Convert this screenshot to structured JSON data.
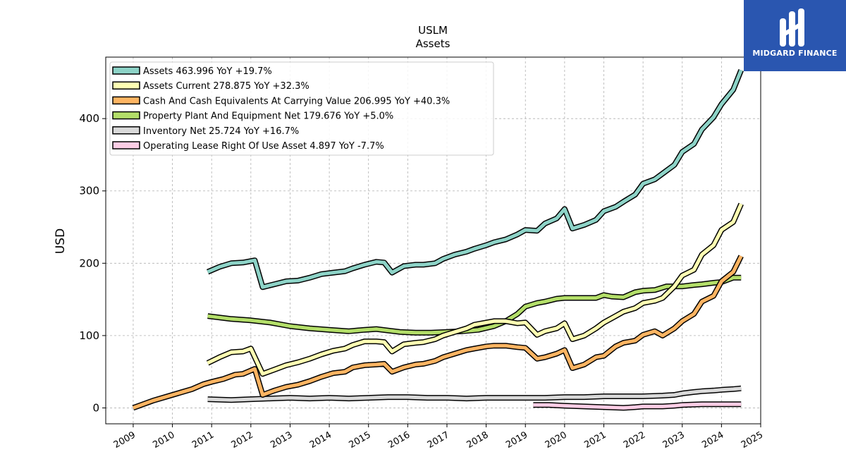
{
  "brand": {
    "name": "MIDGARD FINANCE",
    "color": "#2a56b0"
  },
  "chart_data": {
    "type": "line",
    "title": "USLM",
    "subtitle": "Assets",
    "ylabel": "USD",
    "xlabel": "",
    "xlim": [
      2008.3,
      2025.0
    ],
    "ylim": [
      -22,
      485
    ],
    "yticks": [
      0,
      100,
      200,
      300,
      400
    ],
    "xticks": [
      "2009",
      "2010",
      "2011",
      "2012",
      "2013",
      "2014",
      "2015",
      "2016",
      "2017",
      "2018",
      "2019",
      "2020",
      "2021",
      "2022",
      "2023",
      "2024",
      "2025"
    ],
    "grid": true,
    "legend_position": "top-left",
    "series": [
      {
        "name": "Assets  463.996 YoY +19.7%",
        "color": "#8dd3c7",
        "points": [
          [
            2010.9,
            188
          ],
          [
            2011.2,
            195
          ],
          [
            2011.5,
            200
          ],
          [
            2011.8,
            201
          ],
          [
            2012.1,
            204
          ],
          [
            2012.3,
            167
          ],
          [
            2012.6,
            171
          ],
          [
            2012.9,
            175
          ],
          [
            2013.2,
            176
          ],
          [
            2013.5,
            180
          ],
          [
            2013.8,
            185
          ],
          [
            2014.1,
            187
          ],
          [
            2014.4,
            189
          ],
          [
            2014.6,
            193
          ],
          [
            2014.9,
            198
          ],
          [
            2015.2,
            202
          ],
          [
            2015.4,
            201
          ],
          [
            2015.6,
            187
          ],
          [
            2015.9,
            196
          ],
          [
            2016.2,
            198
          ],
          [
            2016.4,
            198
          ],
          [
            2016.7,
            200
          ],
          [
            2016.9,
            206
          ],
          [
            2017.2,
            212
          ],
          [
            2017.5,
            216
          ],
          [
            2017.7,
            220
          ],
          [
            2018.0,
            225
          ],
          [
            2018.2,
            229
          ],
          [
            2018.5,
            233
          ],
          [
            2018.8,
            240
          ],
          [
            2019.0,
            246
          ],
          [
            2019.3,
            245
          ],
          [
            2019.5,
            255
          ],
          [
            2019.8,
            262
          ],
          [
            2020.0,
            275
          ],
          [
            2020.2,
            248
          ],
          [
            2020.5,
            253
          ],
          [
            2020.8,
            260
          ],
          [
            2021.0,
            272
          ],
          [
            2021.3,
            278
          ],
          [
            2021.5,
            285
          ],
          [
            2021.8,
            295
          ],
          [
            2022.0,
            310
          ],
          [
            2022.3,
            316
          ],
          [
            2022.5,
            324
          ],
          [
            2022.8,
            336
          ],
          [
            2023.0,
            354
          ],
          [
            2023.3,
            365
          ],
          [
            2023.5,
            385
          ],
          [
            2023.8,
            402
          ],
          [
            2024.0,
            420
          ],
          [
            2024.3,
            440
          ],
          [
            2024.5,
            467
          ]
        ]
      },
      {
        "name": "Assets Current  278.875 YoY +32.3%",
        "color": "#ffffb3",
        "points": [
          [
            2010.9,
            62
          ],
          [
            2011.2,
            70
          ],
          [
            2011.5,
            77
          ],
          [
            2011.8,
            78
          ],
          [
            2012.0,
            82
          ],
          [
            2012.3,
            47
          ],
          [
            2012.6,
            53
          ],
          [
            2012.9,
            59
          ],
          [
            2013.2,
            63
          ],
          [
            2013.5,
            68
          ],
          [
            2013.8,
            74
          ],
          [
            2014.1,
            79
          ],
          [
            2014.4,
            82
          ],
          [
            2014.6,
            87
          ],
          [
            2014.9,
            92
          ],
          [
            2015.2,
            92
          ],
          [
            2015.4,
            91
          ],
          [
            2015.6,
            78
          ],
          [
            2015.9,
            88
          ],
          [
            2016.2,
            90
          ],
          [
            2016.4,
            91
          ],
          [
            2016.7,
            95
          ],
          [
            2016.9,
            100
          ],
          [
            2017.2,
            105
          ],
          [
            2017.5,
            110
          ],
          [
            2017.7,
            115
          ],
          [
            2018.0,
            118
          ],
          [
            2018.2,
            120
          ],
          [
            2018.5,
            120
          ],
          [
            2018.8,
            117
          ],
          [
            2019.0,
            118
          ],
          [
            2019.3,
            101
          ],
          [
            2019.5,
            106
          ],
          [
            2019.8,
            110
          ],
          [
            2020.0,
            117
          ],
          [
            2020.2,
            95
          ],
          [
            2020.5,
            100
          ],
          [
            2020.8,
            110
          ],
          [
            2021.0,
            118
          ],
          [
            2021.3,
            127
          ],
          [
            2021.5,
            133
          ],
          [
            2021.8,
            138
          ],
          [
            2022.0,
            145
          ],
          [
            2022.3,
            148
          ],
          [
            2022.5,
            152
          ],
          [
            2022.8,
            168
          ],
          [
            2023.0,
            183
          ],
          [
            2023.3,
            191
          ],
          [
            2023.5,
            212
          ],
          [
            2023.8,
            225
          ],
          [
            2024.0,
            246
          ],
          [
            2024.3,
            257
          ],
          [
            2024.5,
            282
          ]
        ]
      },
      {
        "name": "Cash And Cash Equivalents At Carrying Value  206.995 YoY +40.3%",
        "color": "#fdb462",
        "points": [
          [
            2009.0,
            0
          ],
          [
            2009.5,
            10
          ],
          [
            2010.0,
            18
          ],
          [
            2010.5,
            26
          ],
          [
            2010.8,
            33
          ],
          [
            2011.0,
            36
          ],
          [
            2011.3,
            40
          ],
          [
            2011.6,
            46
          ],
          [
            2011.8,
            47
          ],
          [
            2012.1,
            54
          ],
          [
            2012.3,
            18
          ],
          [
            2012.6,
            24
          ],
          [
            2012.9,
            29
          ],
          [
            2013.2,
            32
          ],
          [
            2013.5,
            37
          ],
          [
            2013.8,
            43
          ],
          [
            2014.1,
            48
          ],
          [
            2014.4,
            50
          ],
          [
            2014.6,
            56
          ],
          [
            2014.9,
            59
          ],
          [
            2015.2,
            60
          ],
          [
            2015.4,
            61
          ],
          [
            2015.6,
            50
          ],
          [
            2015.9,
            56
          ],
          [
            2016.2,
            60
          ],
          [
            2016.4,
            61
          ],
          [
            2016.7,
            65
          ],
          [
            2016.9,
            70
          ],
          [
            2017.2,
            75
          ],
          [
            2017.5,
            80
          ],
          [
            2017.7,
            82
          ],
          [
            2018.0,
            85
          ],
          [
            2018.2,
            86
          ],
          [
            2018.5,
            86
          ],
          [
            2018.8,
            84
          ],
          [
            2019.0,
            83
          ],
          [
            2019.3,
            68
          ],
          [
            2019.5,
            70
          ],
          [
            2019.8,
            75
          ],
          [
            2020.0,
            80
          ],
          [
            2020.2,
            55
          ],
          [
            2020.5,
            60
          ],
          [
            2020.8,
            70
          ],
          [
            2021.0,
            72
          ],
          [
            2021.3,
            85
          ],
          [
            2021.5,
            90
          ],
          [
            2021.8,
            93
          ],
          [
            2022.0,
            101
          ],
          [
            2022.3,
            106
          ],
          [
            2022.5,
            100
          ],
          [
            2022.8,
            110
          ],
          [
            2023.0,
            120
          ],
          [
            2023.3,
            130
          ],
          [
            2023.5,
            147
          ],
          [
            2023.8,
            155
          ],
          [
            2024.0,
            175
          ],
          [
            2024.3,
            188
          ],
          [
            2024.5,
            210
          ]
        ]
      },
      {
        "name": "Property Plant And Equipment Net  179.676 YoY +5.0%",
        "color": "#b3de69",
        "points": [
          [
            2010.9,
            127
          ],
          [
            2011.5,
            123
          ],
          [
            2012.0,
            121
          ],
          [
            2012.5,
            118
          ],
          [
            2013.0,
            113
          ],
          [
            2013.5,
            110
          ],
          [
            2014.0,
            108
          ],
          [
            2014.5,
            106
          ],
          [
            2014.9,
            108
          ],
          [
            2015.2,
            109
          ],
          [
            2015.5,
            107
          ],
          [
            2015.8,
            105
          ],
          [
            2016.2,
            104
          ],
          [
            2016.6,
            104
          ],
          [
            2017.0,
            105
          ],
          [
            2017.4,
            106
          ],
          [
            2017.8,
            108
          ],
          [
            2018.2,
            113
          ],
          [
            2018.5,
            120
          ],
          [
            2018.8,
            130
          ],
          [
            2019.0,
            140
          ],
          [
            2019.3,
            145
          ],
          [
            2019.5,
            147
          ],
          [
            2019.8,
            151
          ],
          [
            2020.0,
            152
          ],
          [
            2020.5,
            152
          ],
          [
            2020.8,
            152
          ],
          [
            2021.0,
            156
          ],
          [
            2021.2,
            154
          ],
          [
            2021.5,
            153
          ],
          [
            2021.8,
            160
          ],
          [
            2022.0,
            162
          ],
          [
            2022.3,
            163
          ],
          [
            2022.6,
            168
          ],
          [
            2022.8,
            168
          ],
          [
            2023.0,
            168
          ],
          [
            2023.3,
            170
          ],
          [
            2023.5,
            171
          ],
          [
            2023.8,
            173
          ],
          [
            2024.0,
            174
          ],
          [
            2024.3,
            180
          ],
          [
            2024.5,
            180
          ]
        ]
      },
      {
        "name": "Inventory Net  25.724 YoY +16.7%",
        "color": "#d9d9d9",
        "points": [
          [
            2010.9,
            12
          ],
          [
            2011.5,
            11
          ],
          [
            2012.0,
            12
          ],
          [
            2012.5,
            13
          ],
          [
            2013.0,
            14
          ],
          [
            2013.5,
            13
          ],
          [
            2014.0,
            14
          ],
          [
            2014.5,
            13
          ],
          [
            2015.0,
            14
          ],
          [
            2015.5,
            15
          ],
          [
            2016.0,
            15
          ],
          [
            2016.5,
            14
          ],
          [
            2017.0,
            14
          ],
          [
            2017.5,
            13
          ],
          [
            2018.0,
            14
          ],
          [
            2018.5,
            14
          ],
          [
            2019.0,
            14
          ],
          [
            2019.5,
            14
          ],
          [
            2020.0,
            15
          ],
          [
            2020.5,
            15
          ],
          [
            2021.0,
            16
          ],
          [
            2021.5,
            16
          ],
          [
            2022.0,
            16
          ],
          [
            2022.5,
            17
          ],
          [
            2022.8,
            18
          ],
          [
            2023.0,
            20
          ],
          [
            2023.3,
            22
          ],
          [
            2023.5,
            23
          ],
          [
            2023.8,
            24
          ],
          [
            2024.0,
            25
          ],
          [
            2024.3,
            26
          ],
          [
            2024.5,
            27
          ]
        ]
      },
      {
        "name": "Operating Lease Right Of Use Asset  4.897 YoY -7.7%",
        "color": "#fccde5",
        "points": [
          [
            2019.2,
            4
          ],
          [
            2019.6,
            4
          ],
          [
            2020.0,
            3
          ],
          [
            2020.5,
            2
          ],
          [
            2021.0,
            1
          ],
          [
            2021.5,
            0
          ],
          [
            2021.8,
            1
          ],
          [
            2022.0,
            2
          ],
          [
            2022.5,
            2
          ],
          [
            2022.8,
            3
          ],
          [
            2023.0,
            4
          ],
          [
            2023.5,
            5
          ],
          [
            2024.0,
            5
          ],
          [
            2024.5,
            5
          ]
        ]
      }
    ]
  }
}
